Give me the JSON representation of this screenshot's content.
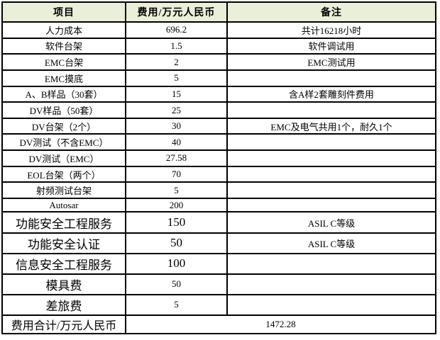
{
  "colors": {
    "header_bg": "#E9EFD8",
    "grid_border": "#000000",
    "text": "#000000"
  },
  "table": {
    "headers": [
      "项目",
      "费用/万元人民币",
      "备注"
    ],
    "rows": [
      {
        "item": "人力成本",
        "cost": "696.2",
        "note": "共计16218小时",
        "large_item": false,
        "large_cost": false
      },
      {
        "item": "软件台架",
        "cost": "1.5",
        "note": "软件调试用",
        "large_item": false,
        "large_cost": false
      },
      {
        "item": "EMC台架",
        "cost": "2",
        "note": "EMC测试用",
        "large_item": false,
        "large_cost": false
      },
      {
        "item": "EMC摸底",
        "cost": "5",
        "note": "",
        "large_item": false,
        "large_cost": false
      },
      {
        "item": "A、B样品（30套）",
        "cost": "15",
        "note": "含A样2套雕刻件费用",
        "large_item": false,
        "large_cost": false
      },
      {
        "item": "DV样品（50套）",
        "cost": "25",
        "note": "",
        "large_item": false,
        "large_cost": false
      },
      {
        "item": "DV台架（2个）",
        "cost": "30",
        "note": "EMC及电气共用1个，耐久1个",
        "large_item": false,
        "large_cost": false
      },
      {
        "item": "DV测试（不含EMC）",
        "cost": "40",
        "note": "",
        "large_item": false,
        "large_cost": false
      },
      {
        "item": "DV测试（EMC）",
        "cost": "27.58",
        "note": "",
        "large_item": false,
        "large_cost": false
      },
      {
        "item": "EOL台架（两个）",
        "cost": "70",
        "note": "",
        "large_item": false,
        "large_cost": false
      },
      {
        "item": "射频测试台架",
        "cost": "5",
        "note": "",
        "large_item": false,
        "large_cost": false
      },
      {
        "item": "Autosar",
        "cost": "200",
        "note": "",
        "large_item": false,
        "large_cost": false
      },
      {
        "item": "功能安全工程服务",
        "cost": "150",
        "note": "ASIL C等级",
        "large_item": true,
        "large_cost": true
      },
      {
        "item": "功能安全认证",
        "cost": "50",
        "note": "ASIL C等级",
        "large_item": true,
        "large_cost": true
      },
      {
        "item": "信息安全工程服务",
        "cost": "100",
        "note": "",
        "large_item": true,
        "large_cost": true
      },
      {
        "item": "模具费",
        "cost": "50",
        "note": "",
        "large_item": true,
        "large_cost": false
      },
      {
        "item": "差旅费",
        "cost": "5",
        "note": "",
        "large_item": true,
        "large_cost": false
      }
    ],
    "total_row": {
      "label": "费用合计/万元人民币",
      "value": "1472.28"
    }
  }
}
